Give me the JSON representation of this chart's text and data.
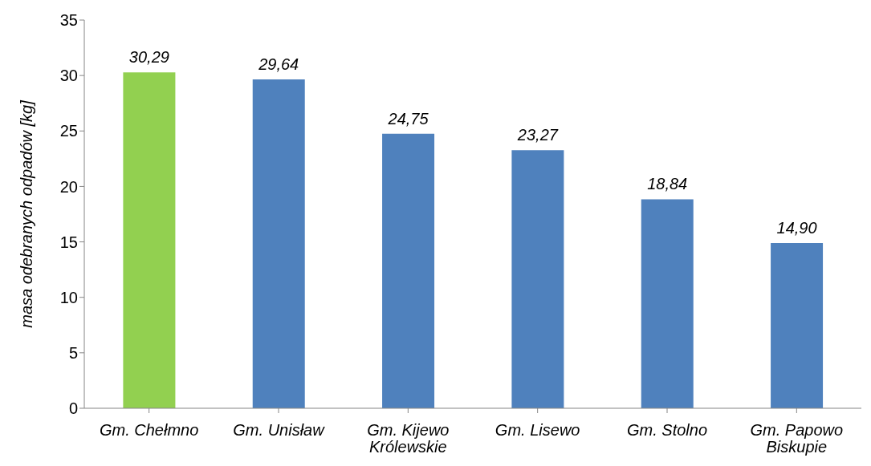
{
  "chart_data": {
    "type": "bar",
    "ylabel": "masa odebranych odpadów [kg]",
    "categories": [
      "Gm. Chełmno",
      "Gm. Unisław",
      "Gm. Kijewo Królewskie",
      "Gm. Lisewo",
      "Gm. Stolno",
      "Gm. Papowo Biskupie"
    ],
    "values": [
      30.29,
      29.64,
      24.75,
      23.27,
      18.84,
      14.9
    ],
    "value_labels": [
      "30,29",
      "29,64",
      "24,75",
      "23,27",
      "18,84",
      "14,90"
    ],
    "colors": [
      "#92d050",
      "#4f81bd",
      "#4f81bd",
      "#4f81bd",
      "#4f81bd",
      "#4f81bd"
    ],
    "ylim": [
      0,
      35
    ],
    "yticks": [
      0,
      5,
      10,
      15,
      20,
      25,
      30,
      35
    ],
    "grid": false
  }
}
